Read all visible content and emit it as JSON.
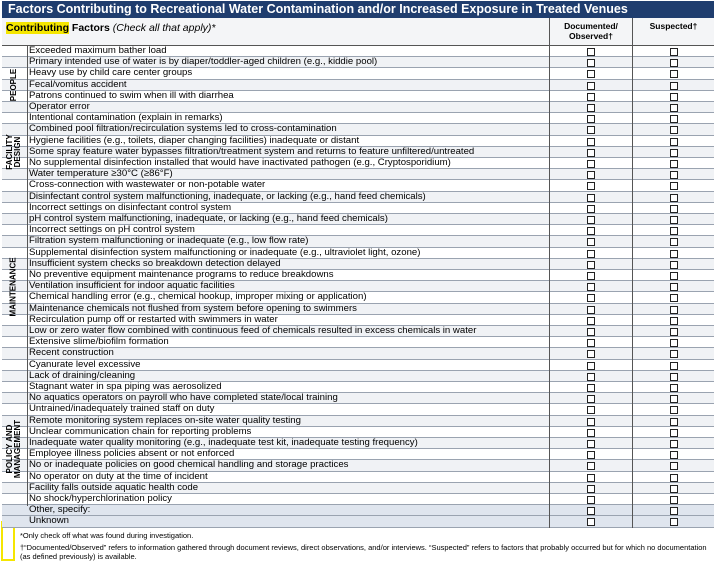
{
  "header": {
    "title": "Factors Contributing to Recreational Water Contamination and/or Increased Exposure in Treated Venues",
    "highlight": "Contributing",
    "label": "Factors",
    "note": "(Check all that apply)*"
  },
  "table": {
    "columns": [
      "Documented/ Observed†",
      "Suspected†"
    ],
    "groups": [
      {
        "label": "PEOPLE",
        "rows": [
          "Exceeded maximum bather load",
          "Primary intended use of water is by diaper/toddler-aged children (e.g., kiddie pool)",
          "Heavy use by child care center groups",
          "Fecal/vomitus accident",
          "Patrons continued to swim when ill with diarrhea",
          "Operator error",
          "Intentional contamination (explain in remarks)"
        ]
      },
      {
        "label": "FACILITY DESIGN",
        "rows": [
          "Combined pool filtration/recirculation systems led to cross-contamination",
          "Hygiene facilities (e.g., toilets, diaper changing facilities) inadequate or distant",
          "Some spray feature water bypasses filtration/treatment system and returns to feature unfiltered/untreated",
          "No supplemental disinfection installed that would have inactivated pathogen (e.g., Cryptosporidium)",
          "Water temperature ≥30°C (≥86°F)"
        ]
      },
      {
        "label": "MAINTENANCE",
        "rows": [
          "Cross-connection with wastewater or non-potable water",
          "Disinfectant control system malfunctioning, inadequate, or lacking (e.g., hand feed chemicals)",
          "Incorrect settings on disinfectant control system",
          "pH control system malfunctioning, inadequate, or lacking (e.g., hand feed chemicals)",
          "Incorrect settings on pH control system",
          "Filtration system malfunctioning or inadequate (e.g., low flow rate)",
          "Supplemental disinfection system malfunctioning or inadequate (e.g., ultraviolet light, ozone)",
          "Insufficient system checks so breakdown detection delayed",
          "No preventive equipment maintenance programs to reduce breakdowns",
          "Ventilation insufficient for indoor aquatic facilities",
          "Chemical handling error (e.g., chemical hookup, improper mixing or application)",
          "Maintenance chemicals not flushed from system before opening to swimmers",
          "Recirculation pump off or restarted with swimmers in water",
          "Low or zero water flow combined with continuous feed of chemicals resulted in excess chemicals in water",
          "Extensive slime/biofilm formation",
          "Recent construction",
          "Cyanurate level excessive",
          "Lack of draining/cleaning",
          "Stagnant water in spa piping was aerosolized"
        ]
      },
      {
        "label": "POLICY AND MANAGEMENT",
        "rows": [
          "No aquatics operators on payroll who have completed state/local training",
          "Untrained/inadequately trained staff on duty",
          "Remote monitoring system replaces on-site water quality testing",
          "Unclear communication chain for reporting problems",
          "Inadequate water quality monitoring (e.g., inadequate test kit, inadequate testing frequency)",
          "Employee illness policies absent or not enforced",
          "No or inadequate policies on good chemical handling and storage practices",
          "No operator on duty at the time of incident",
          "Facility falls outside aquatic health code",
          "No shock/hyperchlorination policy"
        ]
      },
      {
        "label": null,
        "rows": [
          "Other, specify:",
          "Unknown"
        ]
      }
    ]
  },
  "footnotes": [
    "*Only check off what was found during investigation.",
    "†“Documented/Observed” refers to information gathered through document reviews, direct observations, and/or interviews. “Suspected” refers to factors that probably occurred but for which no documentation (as defined previously) is available."
  ]
}
